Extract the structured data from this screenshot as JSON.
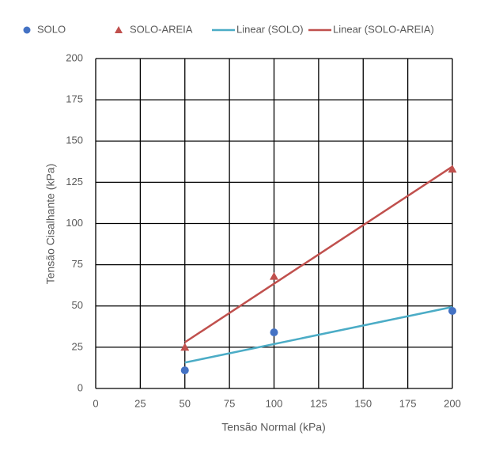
{
  "chart_data": {
    "type": "scatter",
    "xlabel": "Tensão Normal (kPa)",
    "ylabel": "Tensão Cisalhante (kPa)",
    "xlim": [
      0,
      200
    ],
    "xticks": [
      0,
      25,
      50,
      75,
      100,
      125,
      150,
      175,
      200
    ],
    "ylim": [
      0,
      200
    ],
    "yticks": [
      0,
      25,
      50,
      75,
      100,
      125,
      150,
      175,
      200
    ],
    "grid": true,
    "legend": "top",
    "series": [
      {
        "name": "SOLO",
        "color": "#4472c4",
        "marker": "circle",
        "x": [
          50,
          100,
          200
        ],
        "values": [
          11,
          34,
          47
        ]
      },
      {
        "name": "SOLO-AREIA",
        "color": "#c0504d",
        "marker": "triangle",
        "x": [
          50,
          100,
          200
        ],
        "values": [
          25,
          68,
          133
        ]
      },
      {
        "name": "Linear (SOLO)",
        "color": "#4bacc6",
        "marker": "line",
        "x": [
          50,
          200
        ],
        "values": [
          15.7,
          49.4
        ]
      },
      {
        "name": "Linear (SOLO-AREIA)",
        "color": "#c0504d",
        "marker": "line",
        "x": [
          50,
          200
        ],
        "values": [
          28,
          134.5
        ]
      }
    ]
  }
}
